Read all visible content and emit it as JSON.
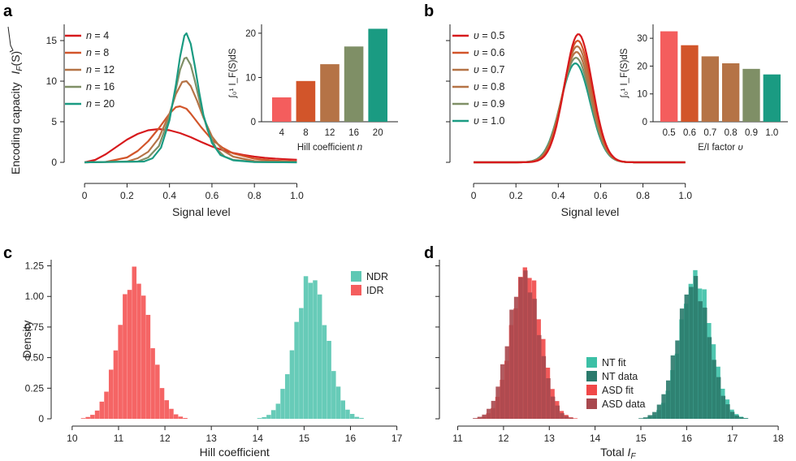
{
  "colors": {
    "n4": "#d7191c",
    "n8": "#d2552a",
    "n12": "#b57346",
    "n16": "#7f8f66",
    "n20": "#1a9b82",
    "ndr": "#5fc8b4",
    "idr": "#f45d5d",
    "nt_fit": "#3cc0a6",
    "nt_data": "#2a7a6c",
    "asd_fit": "#f04848",
    "asd_data": "#a8484e"
  },
  "chart_data": [
    {
      "panel": "a",
      "type": "line",
      "title": "",
      "xlabel": "Signal level",
      "ylabel": "Encoding capacity √I_F(S)",
      "ylabel_text": "Encoding capacity ",
      "ylabel_sqrt": "I",
      "ylabel_sub": "F",
      "ylabel_tail": "(S)",
      "xlim": [
        -0.1,
        1.4
      ],
      "ylim": [
        0,
        17
      ],
      "xticks": [
        "0",
        "0.2",
        "0.4",
        "0.6",
        "0.8",
        "1.0"
      ],
      "xtick_values": [
        0,
        0.2,
        0.4,
        0.6,
        0.8,
        1.0
      ],
      "yticks": [
        "0",
        "5",
        "10",
        "15"
      ],
      "ytick_values": [
        0,
        5,
        10,
        15
      ],
      "series": [
        {
          "name": "n = 4",
          "n_label": "n",
          "value_label": " = 4",
          "color_key": "n4",
          "peak": 4.1,
          "x": [
            0,
            0.05,
            0.1,
            0.15,
            0.2,
            0.25,
            0.3,
            0.35,
            0.4,
            0.45,
            0.5,
            0.55,
            0.6,
            0.65,
            0.7,
            0.75,
            0.8,
            0.85,
            0.9,
            0.95,
            1.0
          ],
          "y": [
            0,
            0.3,
            1.0,
            1.9,
            2.8,
            3.5,
            3.95,
            4.1,
            3.95,
            3.6,
            3.1,
            2.5,
            1.95,
            1.5,
            1.15,
            0.9,
            0.7,
            0.55,
            0.45,
            0.38,
            0.32
          ]
        },
        {
          "name": "n = 8",
          "n_label": "n",
          "value_label": " = 8",
          "color_key": "n8",
          "peak": 6.9,
          "x": [
            0,
            0.1,
            0.2,
            0.25,
            0.3,
            0.35,
            0.4,
            0.43,
            0.45,
            0.48,
            0.5,
            0.55,
            0.6,
            0.65,
            0.7,
            0.8,
            0.9,
            1.0
          ],
          "y": [
            0,
            0.05,
            0.6,
            1.4,
            2.6,
            4.2,
            6.0,
            6.8,
            6.9,
            6.6,
            6.0,
            4.3,
            2.8,
            1.8,
            1.1,
            0.45,
            0.2,
            0.1
          ]
        },
        {
          "name": "n = 12",
          "n_label": "n",
          "value_label": " = 12",
          "color_key": "n12",
          "peak": 10.0,
          "x": [
            0,
            0.2,
            0.25,
            0.3,
            0.35,
            0.4,
            0.43,
            0.46,
            0.48,
            0.5,
            0.53,
            0.56,
            0.6,
            0.65,
            0.7,
            0.8,
            1.0
          ],
          "y": [
            0,
            0.1,
            0.5,
            1.3,
            3.0,
            6.0,
            8.4,
            9.9,
            10.0,
            9.4,
            7.6,
            5.5,
            3.2,
            1.5,
            0.7,
            0.15,
            0.02
          ]
        },
        {
          "name": "n = 16",
          "n_label": "n",
          "value_label": " = 16",
          "color_key": "n16",
          "peak": 12.9,
          "x": [
            0,
            0.25,
            0.3,
            0.35,
            0.4,
            0.43,
            0.45,
            0.47,
            0.48,
            0.5,
            0.52,
            0.55,
            0.58,
            0.62,
            0.66,
            0.7,
            0.8,
            1.0
          ],
          "y": [
            0,
            0.1,
            0.6,
            2.0,
            5.6,
            9.0,
            11.4,
            12.8,
            12.9,
            12.0,
            10.0,
            6.6,
            3.9,
            1.7,
            0.7,
            0.3,
            0.05,
            0
          ]
        },
        {
          "name": "n = 20",
          "n_label": "n",
          "value_label": " = 20",
          "color_key": "n20",
          "peak": 15.9,
          "x": [
            0,
            0.28,
            0.32,
            0.36,
            0.4,
            0.43,
            0.45,
            0.47,
            0.48,
            0.5,
            0.52,
            0.54,
            0.56,
            0.6,
            0.64,
            0.7,
            0.8,
            1.0
          ],
          "y": [
            0,
            0.1,
            0.5,
            1.8,
            5.2,
            9.5,
            13.0,
            15.6,
            15.9,
            14.6,
            11.8,
            8.6,
            5.8,
            2.4,
            0.9,
            0.25,
            0.03,
            0
          ]
        }
      ],
      "legend_position": "top-left",
      "inset": {
        "type": "bar",
        "xlabel": "Hill coefficient n",
        "xlabel_text": "Hill coefficient ",
        "xlabel_var": "n",
        "ylabel": "∫₀¹ I_F(S)dS",
        "ylim": [
          0,
          22
        ],
        "yticks": [
          "0",
          "10",
          "20"
        ],
        "ytick_values": [
          0,
          10,
          20
        ],
        "categories": [
          "4",
          "8",
          "12",
          "16",
          "20"
        ],
        "values": [
          5.5,
          9.2,
          13.0,
          17.0,
          21.0
        ],
        "color_keys": [
          "idr",
          "n8",
          "n12",
          "n16",
          "n20"
        ]
      }
    },
    {
      "panel": "b",
      "type": "line",
      "xlabel": "Signal level",
      "xlim": [
        -0.1,
        1.4
      ],
      "ylim": [
        0,
        17
      ],
      "xticks": [
        "0",
        "0.2",
        "0.4",
        "0.6",
        "0.8",
        "1.0"
      ],
      "xtick_values": [
        0,
        0.2,
        0.4,
        0.6,
        0.8,
        1.0
      ],
      "series": [
        {
          "name": "υ = 0.5",
          "var_label": "υ",
          "value_label": " = 0.5",
          "color_key": "n4",
          "peak": 15.8
        },
        {
          "name": "υ = 0.6",
          "var_label": "υ",
          "value_label": " = 0.6",
          "color_key": "n8",
          "peak": 15.0
        },
        {
          "name": "υ = 0.7",
          "var_label": "υ",
          "value_label": " = 0.7",
          "color_key": "n12",
          "peak": 14.3
        },
        {
          "name": "υ = 0.8",
          "var_label": "υ",
          "value_label": " = 0.8",
          "color_key": "n12",
          "peak": 13.6
        },
        {
          "name": "υ = 0.9",
          "var_label": "υ",
          "value_label": " = 0.9",
          "color_key": "n16",
          "peak": 12.9
        },
        {
          "name": "υ = 1.0",
          "var_label": "υ",
          "value_label": " = 1.0",
          "color_key": "n20",
          "peak": 12.2
        }
      ],
      "legend_position": "top-left",
      "inset": {
        "type": "bar",
        "xlabel": "E/I factor υ",
        "xlabel_text": "E/I factor ",
        "xlabel_var": "υ",
        "ylabel": "∫₀¹ I_F(S)dS",
        "ylim": [
          0,
          35
        ],
        "yticks": [
          "0",
          "10",
          "20",
          "30"
        ],
        "ytick_values": [
          0,
          10,
          20,
          30
        ],
        "categories": [
          "0.5",
          "0.6",
          "0.7",
          "0.8",
          "0.9",
          "1.0"
        ],
        "values": [
          32.5,
          27.5,
          23.5,
          21.0,
          19.0,
          17.0
        ],
        "color_keys": [
          "idr",
          "n8",
          "n12",
          "n12",
          "n16",
          "n20"
        ]
      }
    },
    {
      "panel": "c",
      "type": "histogram",
      "xlabel": "Hill coefficient",
      "ylabel": "Density",
      "xlim": [
        9.6,
        17.2
      ],
      "ylim": [
        0,
        1.3
      ],
      "xticks": [
        "10",
        "11",
        "12",
        "13",
        "14",
        "15",
        "16",
        "17"
      ],
      "xtick_values": [
        10,
        11,
        12,
        13,
        14,
        15,
        16,
        17
      ],
      "yticks": [
        "0",
        "0.25",
        "0.50",
        "0.75",
        "1.00",
        "1.25"
      ],
      "ytick_values": [
        0,
        0.25,
        0.5,
        0.75,
        1.0,
        1.25
      ],
      "legend_position": "top-right",
      "series": [
        {
          "name": "NDR",
          "color_key": "ndr",
          "mean": 15.15,
          "sd": 0.34,
          "peak": 1.16
        },
        {
          "name": "IDR",
          "color_key": "idr",
          "mean": 11.35,
          "sd": 0.34,
          "peak": 1.18
        }
      ]
    },
    {
      "panel": "d",
      "type": "histogram",
      "xlabel": "Total I_F",
      "xlabel_text": "Total ",
      "xlabel_var": "I",
      "xlabel_sub": "F",
      "xlim": [
        10.6,
        18.3
      ],
      "ylim": [
        0,
        1.3
      ],
      "xticks": [
        "11",
        "12",
        "13",
        "14",
        "15",
        "16",
        "17",
        "18"
      ],
      "xtick_values": [
        11,
        12,
        13,
        14,
        15,
        16,
        17,
        18
      ],
      "legend_position": "bottom-right",
      "series": [
        {
          "name": "NT fit",
          "color_key": "nt_fit",
          "mean": 16.2,
          "sd": 0.34,
          "peak": 1.17
        },
        {
          "name": "NT data",
          "color_key": "nt_data",
          "mean": 16.15,
          "sd": 0.35,
          "peak": 1.12
        },
        {
          "name": "ASD fit",
          "color_key": "asd_fit",
          "mean": 12.5,
          "sd": 0.32,
          "peak": 1.23
        },
        {
          "name": "ASD data",
          "color_key": "asd_data",
          "mean": 12.45,
          "sd": 0.33,
          "peak": 1.18
        }
      ]
    }
  ]
}
